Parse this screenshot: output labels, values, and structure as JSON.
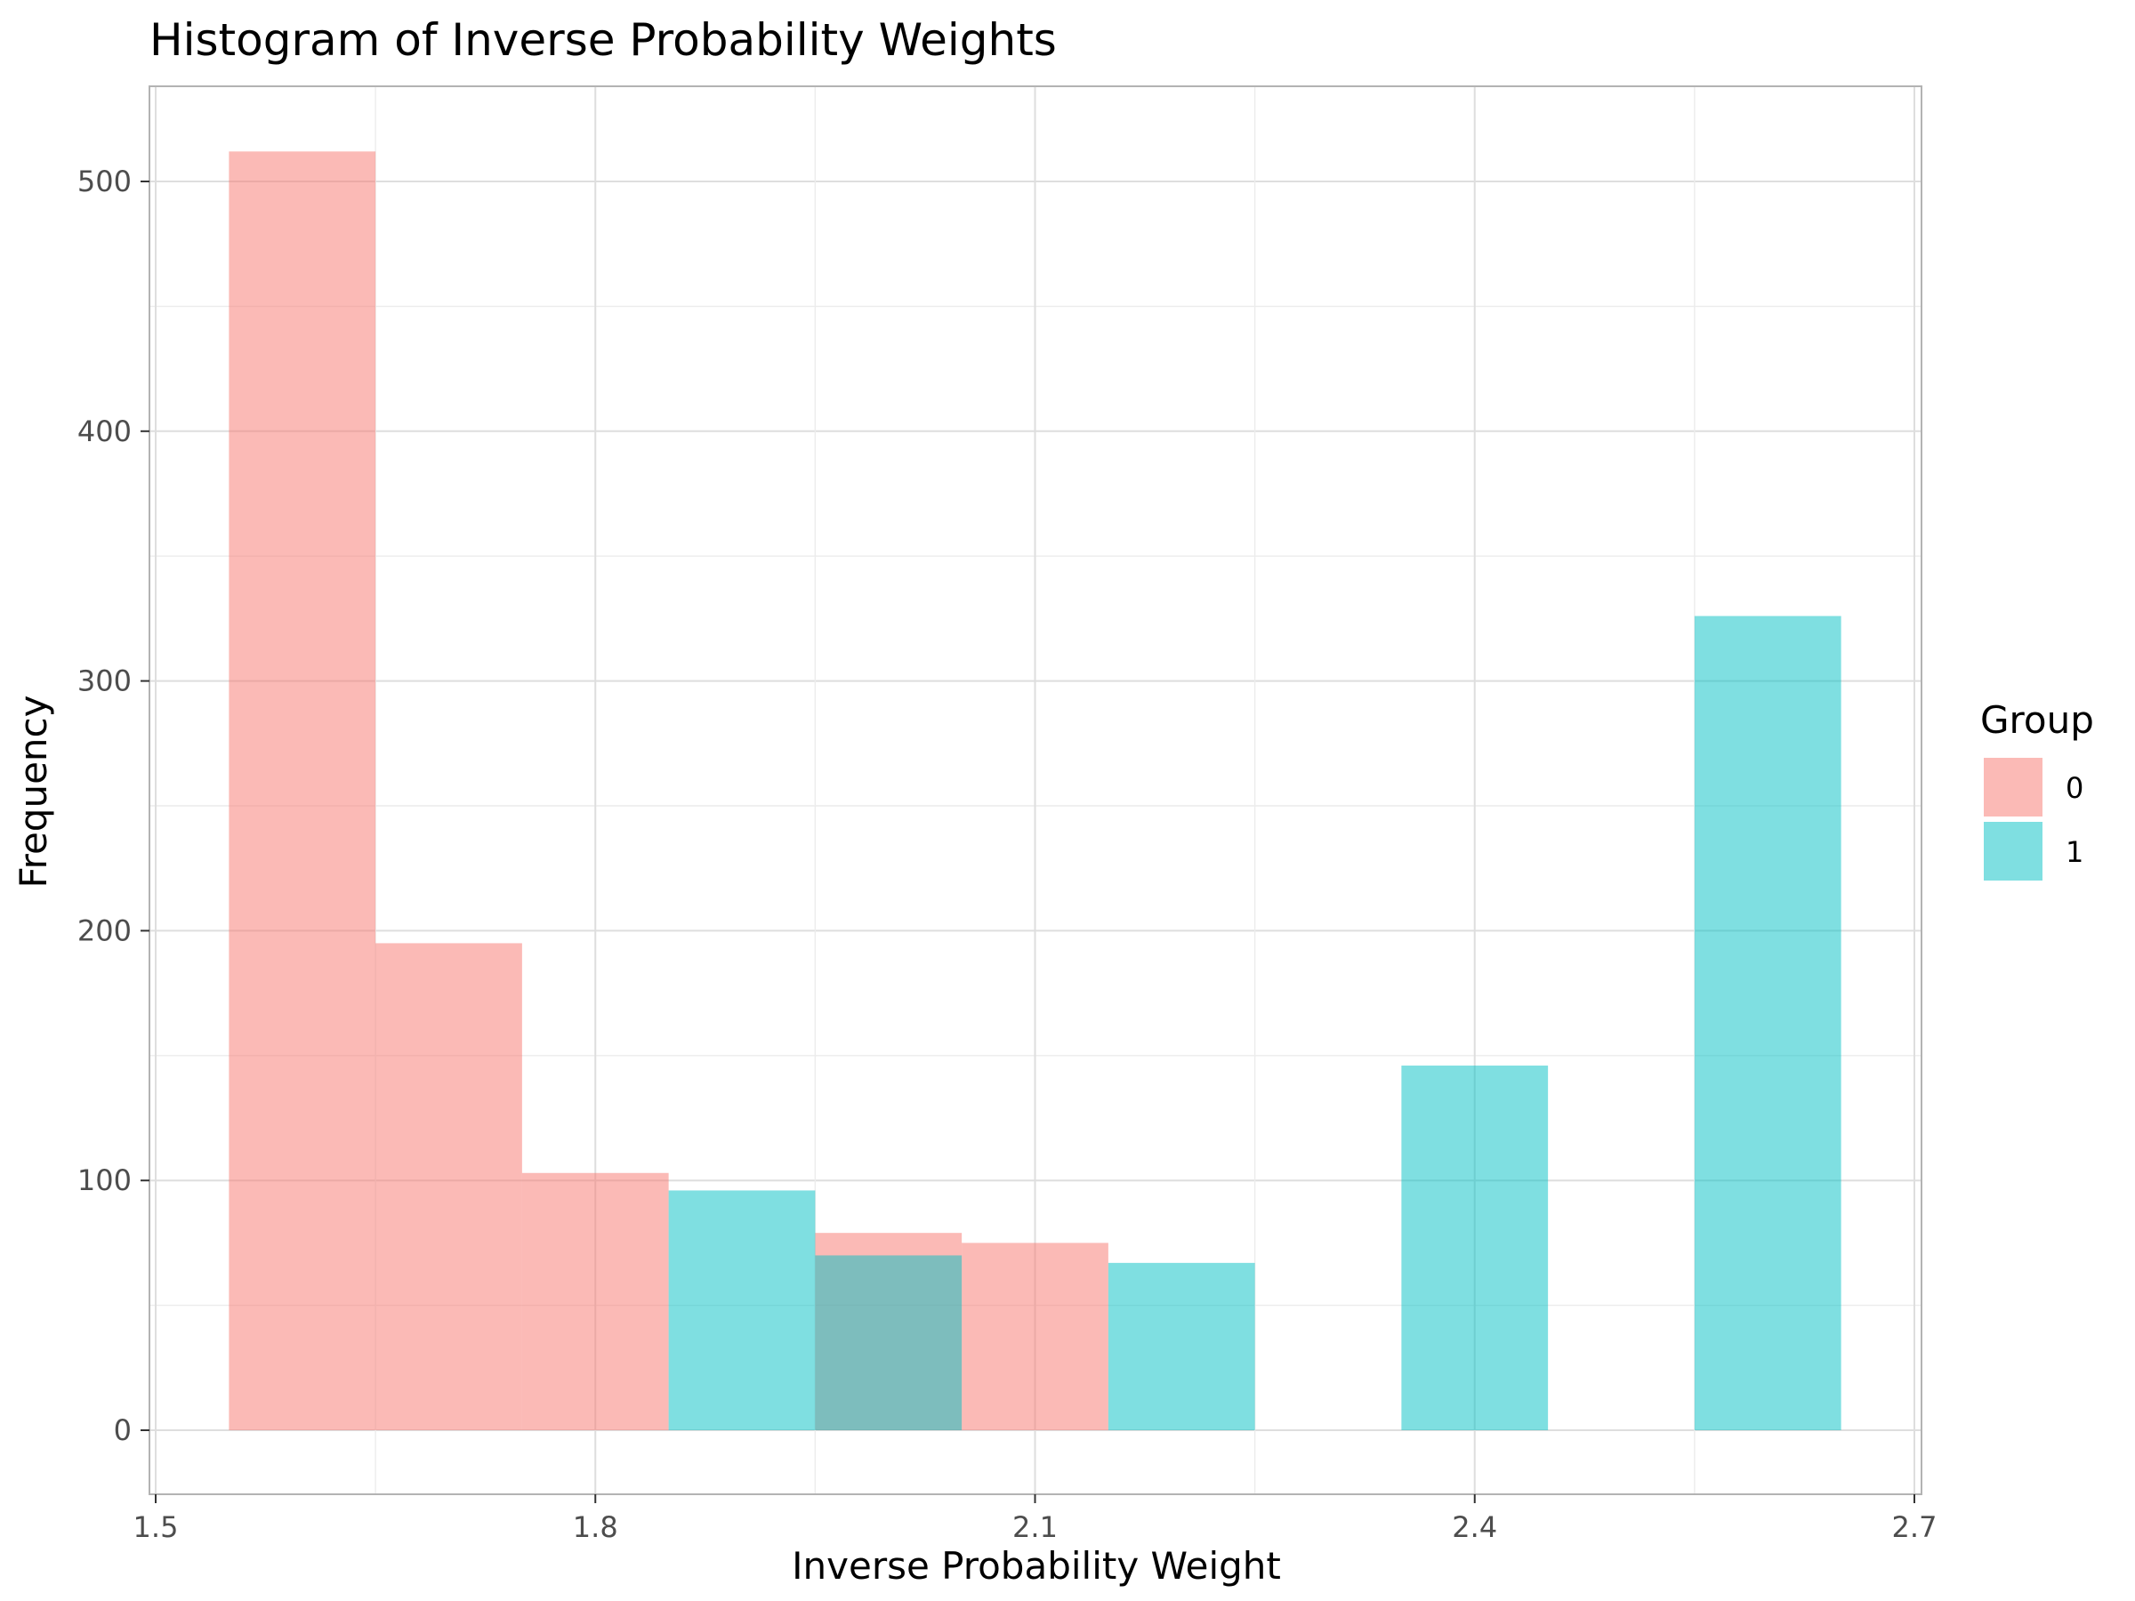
{
  "chart_data": {
    "type": "bar",
    "title": "Histogram of Inverse Probability Weights",
    "xlabel": "Inverse Probability Weight",
    "ylabel": "Frequency",
    "xlim": [
      1.5,
      2.7
    ],
    "ylim": [
      0,
      500
    ],
    "x_ticks": [
      "1.5",
      "1.8",
      "2.1",
      "2.4",
      "2.7"
    ],
    "y_ticks": [
      "0",
      "100",
      "200",
      "300",
      "400",
      "500"
    ],
    "bin_width": 0.1,
    "grid": true,
    "legend": {
      "title": "Group",
      "position": "right"
    },
    "series": [
      {
        "name": "0",
        "color": "#F8766D",
        "bins": [
          {
            "x_start": 1.55,
            "x_end": 1.65,
            "count": 512
          },
          {
            "x_start": 1.65,
            "x_end": 1.75,
            "count": 195
          },
          {
            "x_start": 1.75,
            "x_end": 1.85,
            "count": 103
          },
          {
            "x_start": 1.95,
            "x_end": 2.05,
            "count": 79
          },
          {
            "x_start": 2.05,
            "x_end": 2.15,
            "count": 75
          }
        ]
      },
      {
        "name": "1",
        "color": "#00BFC4",
        "bins": [
          {
            "x_start": 1.85,
            "x_end": 1.95,
            "count": 96
          },
          {
            "x_start": 1.95,
            "x_end": 2.05,
            "count": 70
          },
          {
            "x_start": 2.15,
            "x_end": 2.25,
            "count": 67
          },
          {
            "x_start": 2.35,
            "x_end": 2.45,
            "count": 146
          },
          {
            "x_start": 2.55,
            "x_end": 2.65,
            "count": 326
          }
        ]
      }
    ]
  }
}
